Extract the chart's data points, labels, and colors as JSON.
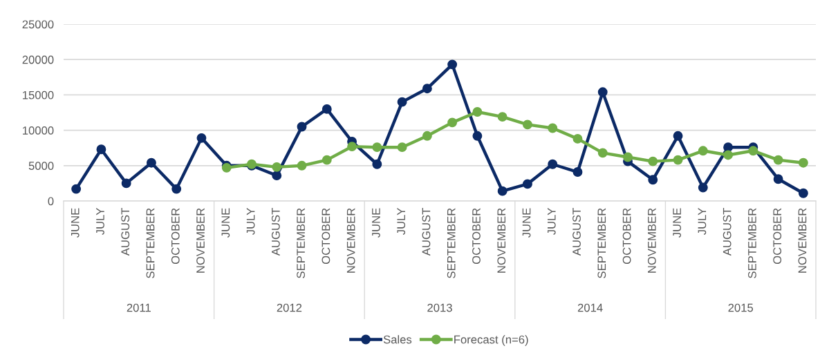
{
  "chart_data": {
    "type": "line",
    "categories": [
      "JUNE",
      "JULY",
      "AUGUST",
      "SEPTEMBER",
      "OCTOBER",
      "NOVEMBER",
      "JUNE",
      "JULY",
      "AUGUST",
      "SEPTEMBER",
      "OCTOBER",
      "NOVEMBER",
      "JUNE",
      "JULY",
      "AUGUST",
      "SEPTEMBER",
      "OCTOBER",
      "NOVEMBER",
      "JUNE",
      "JULY",
      "AUGUST",
      "SEPTEMBER",
      "OCTOBER",
      "NOVEMBER",
      "JUNE",
      "JULY",
      "AUGUST",
      "SEPTEMBER",
      "OCTOBER",
      "NOVEMBER"
    ],
    "series": [
      {
        "name": "Sales",
        "color": "#0c2a66",
        "values": [
          1700,
          7300,
          2500,
          5400,
          1700,
          8900,
          5000,
          5000,
          3600,
          10500,
          13000,
          8400,
          5200,
          14000,
          15900,
          19300,
          9200,
          1400,
          2400,
          5200,
          4100,
          15400,
          5600,
          3000,
          9200,
          1900,
          7600,
          7600,
          3100,
          1100
        ]
      },
      {
        "name": "Forecast (n=6)",
        "color": "#70ad47",
        "values": [
          null,
          null,
          null,
          null,
          null,
          null,
          4700,
          5200,
          4800,
          5000,
          5800,
          7700,
          7600,
          7600,
          9200,
          11100,
          12600,
          11900,
          10800,
          10300,
          8800,
          6800,
          6200,
          5600,
          5800,
          7100,
          6500,
          7100,
          5800,
          5400
        ]
      }
    ],
    "ylim": [
      0,
      25000
    ],
    "yticks": [
      0,
      5000,
      10000,
      15000,
      20000,
      25000
    ],
    "grid": "y",
    "legend": "bottom",
    "marker": "circle",
    "line_style": "solid",
    "annotations": [
      "2011",
      "2012",
      "2013",
      "2014",
      "2015"
    ]
  }
}
